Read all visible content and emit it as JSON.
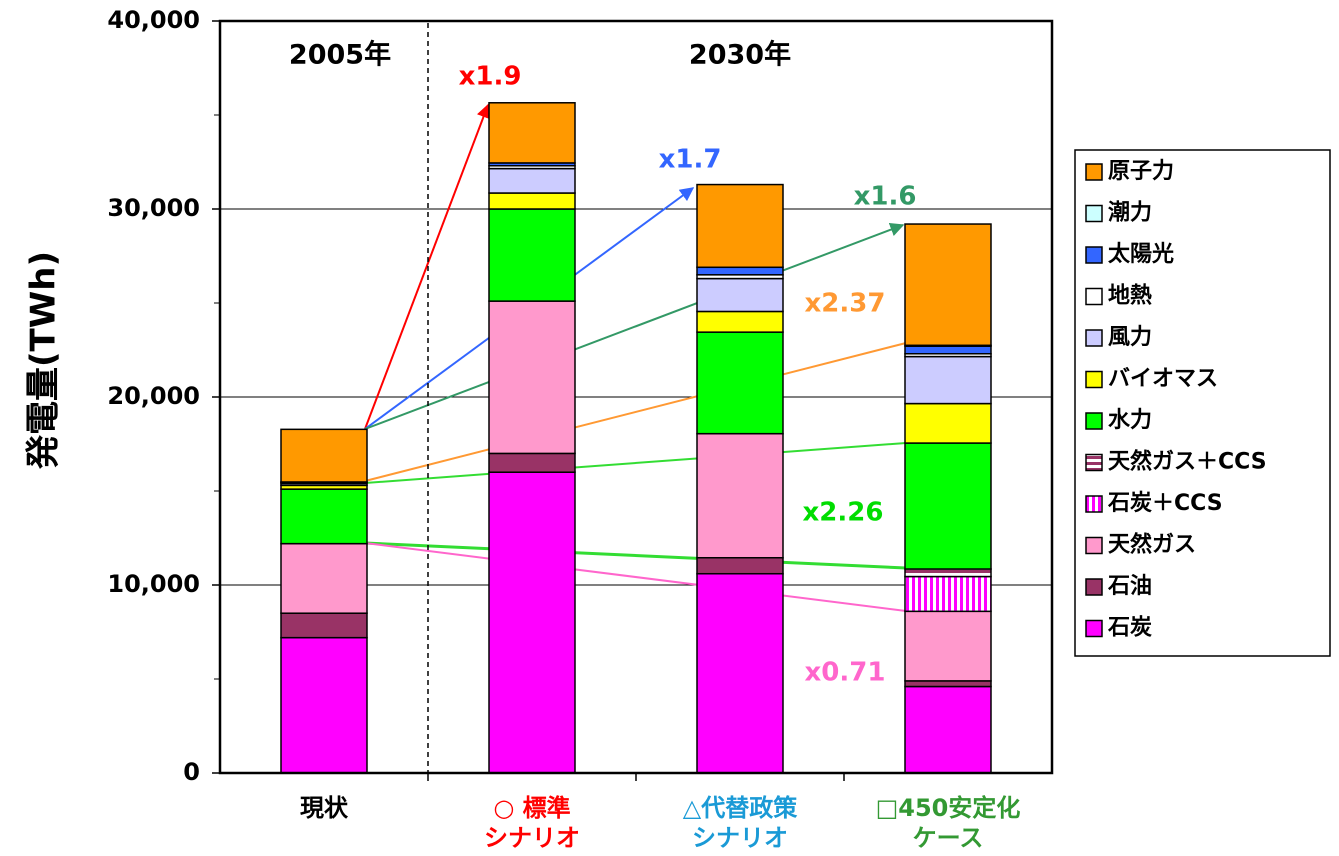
{
  "chart_data": {
    "type": "stacked_bar",
    "y_label": "発電量(TWh)",
    "categories": [
      "現状",
      "○ 標準\nシナリオ",
      "△代替政策\nシナリオ",
      "□450安定化\nケース"
    ],
    "category_colors": [
      "#000000",
      "#ff0000",
      "#1a9ad6",
      "#339933"
    ],
    "period_labels": [
      "2005年",
      "2030年"
    ],
    "ylim": [
      0,
      40000
    ],
    "yticks": [
      0,
      {
        "value": 10000,
        "label": "10,000"
      },
      {
        "value": 20000,
        "label": "20,000"
      },
      {
        "value": 30000,
        "label": "30,000"
      },
      {
        "value": 40000,
        "label": "40,000"
      }
    ],
    "grid": true,
    "legend": "right",
    "series": [
      {
        "name": "石炭",
        "color": "#ff00ff",
        "values": [
          7200,
          16000,
          10600,
          4600
        ]
      },
      {
        "name": "石油",
        "color": "#993366",
        "values": [
          1300,
          1000,
          850,
          300
        ]
      },
      {
        "name": "天然ガス",
        "color": "#ff99cc",
        "values": [
          3700,
          8100,
          6600,
          3700
        ]
      },
      {
        "name": "石炭＋CCS",
        "color": "#ff00ff",
        "hatch": "vertical",
        "values": [
          0,
          0,
          0,
          1850
        ]
      },
      {
        "name": "天然ガス＋CCS",
        "color": "#993366",
        "hatch": "horizontal",
        "values": [
          0,
          0,
          0,
          400
        ]
      },
      {
        "name": "水力",
        "color": "#00ff00",
        "values": [
          2900,
          4900,
          5400,
          6700
        ]
      },
      {
        "name": "バイオマス",
        "color": "#ffff00",
        "values": [
          200,
          850,
          1100,
          2100
        ]
      },
      {
        "name": "風力",
        "color": "#ccccff",
        "values": [
          100,
          1300,
          1750,
          2500
        ]
      },
      {
        "name": "地熱",
        "color": "#ffffff",
        "values": [
          60,
          150,
          200,
          150
        ]
      },
      {
        "name": "太陽光",
        "color": "#3366ff",
        "values": [
          20,
          150,
          400,
          400
        ]
      },
      {
        "name": "潮力",
        "color": "#ccffff",
        "values": [
          0,
          0,
          0,
          50
        ]
      },
      {
        "name": "原子力",
        "color": "#ff9900",
        "values": [
          2800,
          3200,
          4400,
          6450
        ]
      }
    ],
    "annotations": [
      {
        "text": "x1.9",
        "color": "#ff0000"
      },
      {
        "text": "x1.7",
        "color": "#3366ff"
      },
      {
        "text": "x1.6",
        "color": "#339966"
      },
      {
        "text": "x2.37",
        "color": "#ff9933"
      },
      {
        "text": "x2.26",
        "color": "#00dd00"
      },
      {
        "text": "x0.71",
        "color": "#ff66cc"
      }
    ]
  }
}
